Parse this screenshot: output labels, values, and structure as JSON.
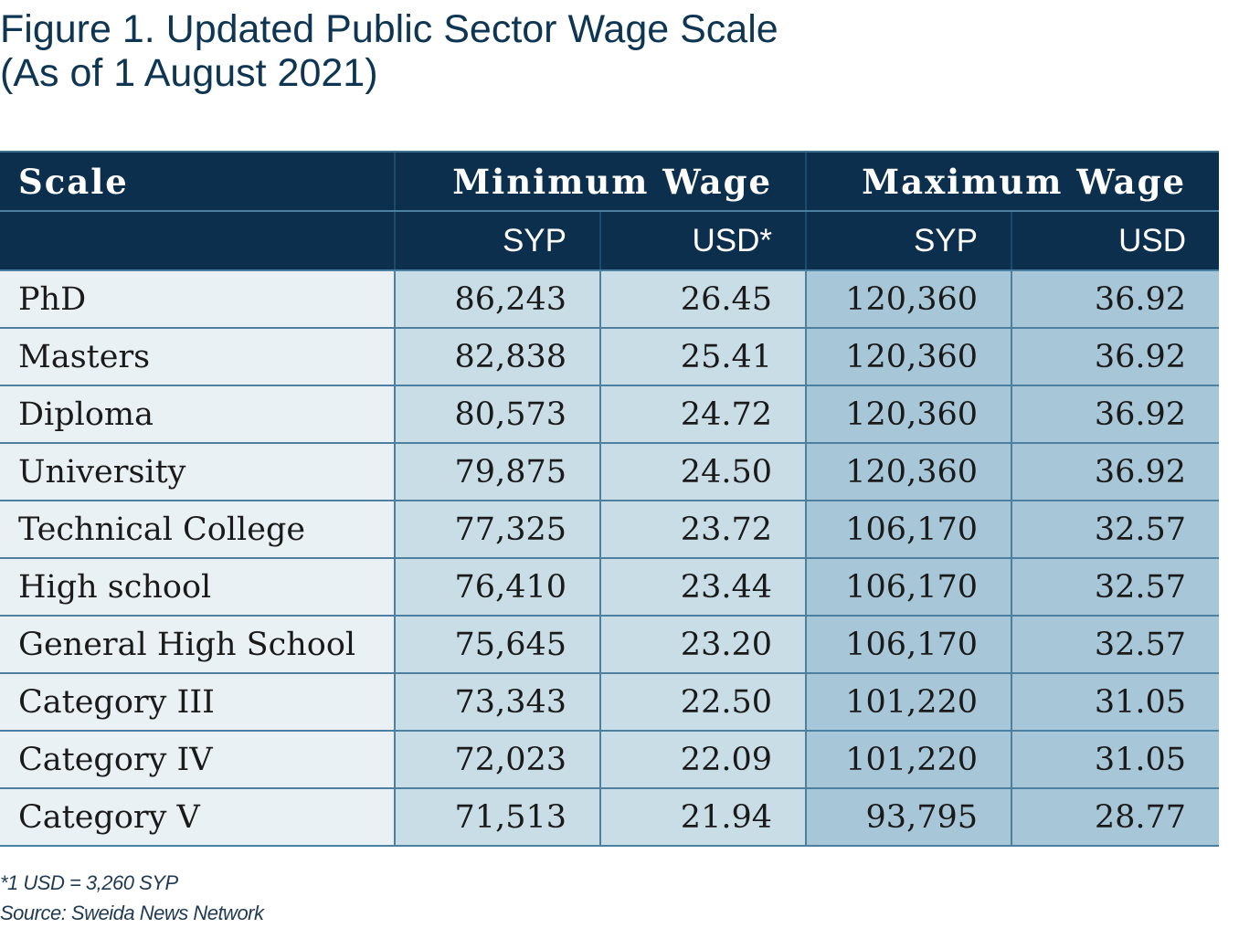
{
  "title_line1": "Figure 1. Updated Public Sector Wage Scale",
  "title_line2": "(As of 1 August 2021)",
  "header": {
    "scale": "Scale",
    "min_group": "Minimum Wage",
    "max_group": "Maximum Wage",
    "min_syp": "SYP",
    "min_usd": "USD*",
    "max_syp": "SYP",
    "max_usd": "USD"
  },
  "rows": [
    {
      "scale": "PhD",
      "min_syp": "86,243",
      "min_usd": "26.45",
      "max_syp": "120,360",
      "max_usd": "36.92"
    },
    {
      "scale": "Masters",
      "min_syp": "82,838",
      "min_usd": "25.41",
      "max_syp": "120,360",
      "max_usd": "36.92"
    },
    {
      "scale": "Diploma",
      "min_syp": "80,573",
      "min_usd": "24.72",
      "max_syp": "120,360",
      "max_usd": "36.92"
    },
    {
      "scale": "University",
      "min_syp": "79,875",
      "min_usd": "24.50",
      "max_syp": "120,360",
      "max_usd": "36.92"
    },
    {
      "scale": "Technical College",
      "min_syp": "77,325",
      "min_usd": "23.72",
      "max_syp": "106,170",
      "max_usd": "32.57"
    },
    {
      "scale": "High school",
      "min_syp": "76,410",
      "min_usd": "23.44",
      "max_syp": "106,170",
      "max_usd": "32.57"
    },
    {
      "scale": "General High School",
      "min_syp": "75,645",
      "min_usd": "23.20",
      "max_syp": "106,170",
      "max_usd": "32.57"
    },
    {
      "scale": "Category III",
      "min_syp": "73,343",
      "min_usd": "22.50",
      "max_syp": "101,220",
      "max_usd": "31.05"
    },
    {
      "scale": "Category IV",
      "min_syp": "72,023",
      "min_usd": "22.09",
      "max_syp": "101,220",
      "max_usd": "31.05"
    },
    {
      "scale": "Category V",
      "min_syp": "71,513",
      "min_usd": "21.94",
      "max_syp": "93,795",
      "max_usd": "28.77"
    }
  ],
  "footnote": "*1 USD = 3,260 SYP",
  "source": "Source: Sweida News Network",
  "colors": {
    "header_bg": "#0b2f4c",
    "scale_col_bg": "#e9f1f5",
    "min_col_bg": "#c9dde6",
    "max_col_bg": "#a7c7d8",
    "title": "#0e3552"
  },
  "chart_data": {
    "type": "table",
    "title": "Figure 1. Updated Public Sector Wage Scale (As of 1 August 2021)",
    "columns": [
      "Scale",
      "Minimum Wage SYP",
      "Minimum Wage USD*",
      "Maximum Wage SYP",
      "Maximum Wage USD"
    ],
    "categories": [
      "PhD",
      "Masters",
      "Diploma",
      "University",
      "Technical College",
      "High school",
      "General High School",
      "Category III",
      "Category IV",
      "Category V"
    ],
    "series": [
      {
        "name": "Minimum Wage SYP",
        "values": [
          86243,
          82838,
          80573,
          79875,
          77325,
          76410,
          75645,
          73343,
          72023,
          71513
        ]
      },
      {
        "name": "Minimum Wage USD*",
        "values": [
          26.45,
          25.41,
          24.72,
          24.5,
          23.72,
          23.44,
          23.2,
          22.5,
          22.09,
          21.94
        ]
      },
      {
        "name": "Maximum Wage SYP",
        "values": [
          120360,
          120360,
          120360,
          120360,
          106170,
          106170,
          106170,
          101220,
          101220,
          93795
        ]
      },
      {
        "name": "Maximum Wage USD",
        "values": [
          36.92,
          36.92,
          36.92,
          36.92,
          32.57,
          32.57,
          32.57,
          31.05,
          31.05,
          28.77
        ]
      }
    ]
  }
}
